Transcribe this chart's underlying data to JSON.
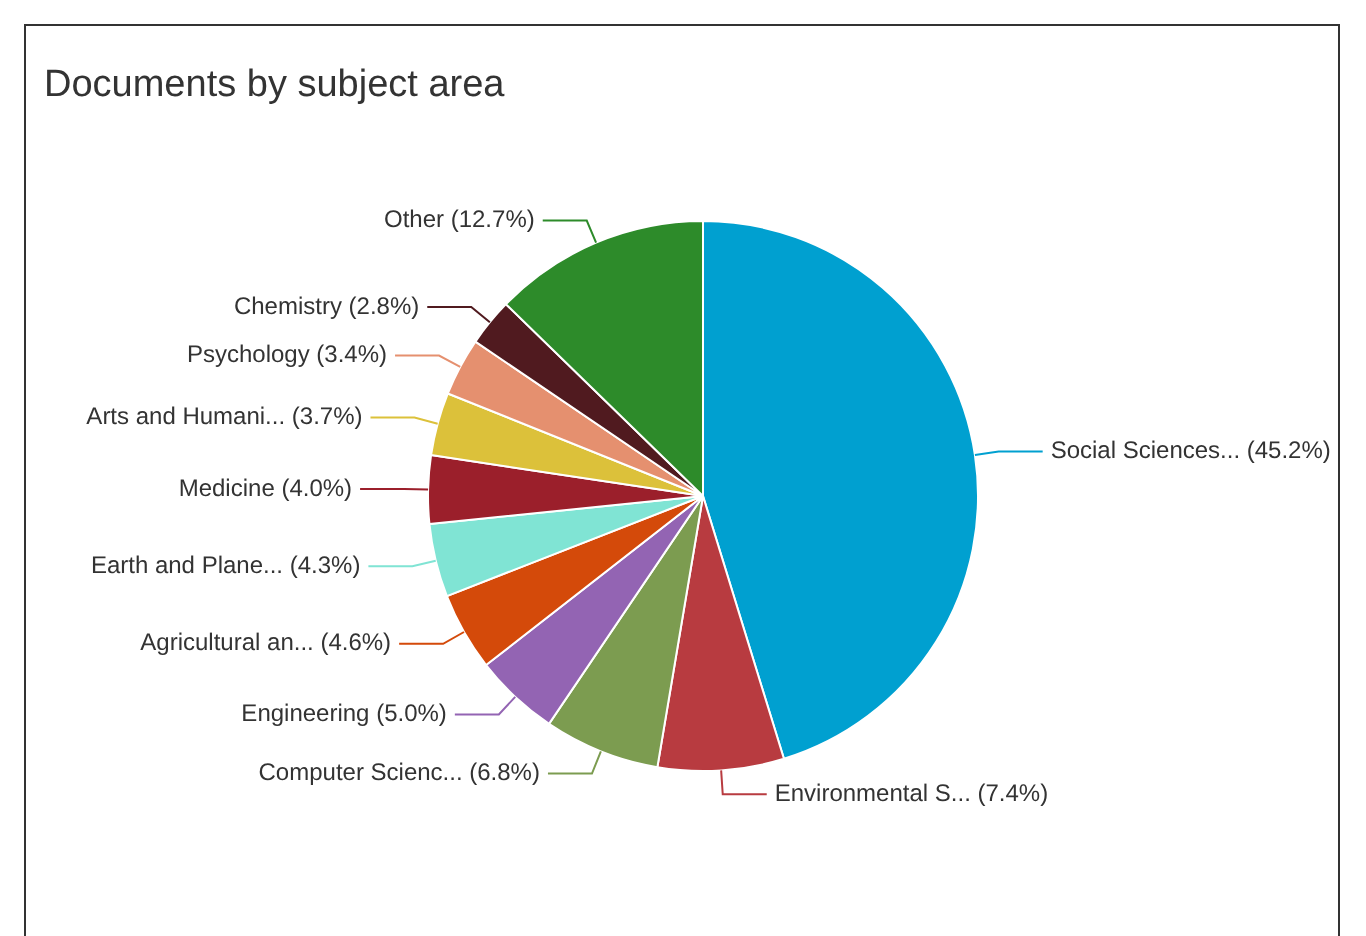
{
  "chart_data": {
    "type": "pie",
    "title": "Documents by subject area",
    "categories": [
      "Social Sciences... (45.2%)",
      "Environmental S... (7.4%)",
      "Computer Scienc... (6.8%)",
      "Engineering (5.0%)",
      "Agricultural an... (4.6%)",
      "Earth and Plane... (4.3%)",
      "Medicine (4.0%)",
      "Arts and Humani... (3.7%)",
      "Psychology (3.4%)",
      "Chemistry (2.8%)",
      "Other (12.7%)"
    ],
    "values": [
      45.2,
      7.4,
      6.8,
      5.0,
      4.6,
      4.3,
      4.0,
      3.7,
      3.4,
      2.8,
      12.7
    ],
    "colors": [
      "#00a0d0",
      "#b83b40",
      "#7c9c50",
      "#9364b3",
      "#d44a0a",
      "#80e4d4",
      "#9b1f2b",
      "#dcc13a",
      "#e5906f",
      "#501a1f",
      "#2d8b2a"
    ],
    "legend": false
  }
}
